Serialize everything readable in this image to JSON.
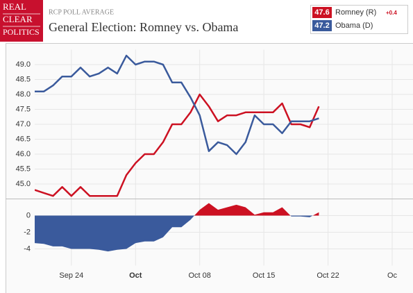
{
  "header": {
    "logo": [
      "REAL",
      "CLEAR",
      "POLITICS"
    ],
    "kicker": "RCP POLL AVERAGE",
    "title": "General Election: Romney vs. Obama"
  },
  "chart_data": [
    {
      "type": "line",
      "x": [
        "Sep 20",
        "Sep 21",
        "Sep 22",
        "Sep 23",
        "Sep 24",
        "Sep 25",
        "Sep 26",
        "Sep 27",
        "Sep 28",
        "Sep 29",
        "Sep 30",
        "Oct 01",
        "Oct 02",
        "Oct 03",
        "Oct 04",
        "Oct 05",
        "Oct 06",
        "Oct 07",
        "Oct 08",
        "Oct 09",
        "Oct 10",
        "Oct 11",
        "Oct 12",
        "Oct 13",
        "Oct 14",
        "Oct 15",
        "Oct 16",
        "Oct 17",
        "Oct 18",
        "Oct 19",
        "Oct 20",
        "Oct 21"
      ],
      "series": [
        {
          "name": "Romney (R)",
          "color": "#cc1122",
          "latest": 47.6,
          "change": "+0.4",
          "values": [
            44.8,
            44.7,
            44.6,
            44.9,
            44.6,
            44.9,
            44.6,
            44.6,
            44.6,
            44.6,
            45.3,
            45.7,
            46.0,
            46.0,
            46.4,
            47.0,
            47.0,
            47.4,
            48.0,
            47.6,
            47.1,
            47.3,
            47.3,
            47.4,
            47.4,
            47.4,
            47.4,
            47.7,
            47.0,
            47.0,
            46.9,
            47.6
          ]
        },
        {
          "name": "Obama (D)",
          "color": "#3a5a9c",
          "latest": 47.2,
          "values": [
            48.1,
            48.1,
            48.3,
            48.6,
            48.6,
            48.9,
            48.6,
            48.7,
            48.9,
            48.7,
            49.3,
            49.0,
            49.1,
            49.1,
            49.0,
            48.4,
            48.4,
            47.9,
            47.3,
            46.1,
            46.4,
            46.3,
            46.0,
            46.4,
            47.3,
            47.0,
            47.0,
            46.7,
            47.1,
            47.1,
            47.1,
            47.2
          ]
        }
      ],
      "xlim": [
        "Sep 20",
        "Oct 29"
      ],
      "ylim": [
        44.5,
        49.5
      ],
      "yticks": [
        {
          "value": 45,
          "label": "45.0"
        },
        45.5,
        {
          "value": 46,
          "label": "46.0"
        },
        46.5,
        {
          "value": 47,
          "label": "47.0"
        },
        47.5,
        {
          "value": 48,
          "label": "48.0"
        },
        48.5,
        {
          "value": 49,
          "label": "49.0"
        }
      ],
      "grid": true
    },
    {
      "type": "area",
      "x": [
        "Sep 20",
        "Sep 21",
        "Sep 22",
        "Sep 23",
        "Sep 24",
        "Sep 25",
        "Sep 26",
        "Sep 27",
        "Sep 28",
        "Sep 29",
        "Sep 30",
        "Oct 01",
        "Oct 02",
        "Oct 03",
        "Oct 04",
        "Oct 05",
        "Oct 06",
        "Oct 07",
        "Oct 08",
        "Oct 09",
        "Oct 10",
        "Oct 11",
        "Oct 12",
        "Oct 13",
        "Oct 14",
        "Oct 15",
        "Oct 16",
        "Oct 17",
        "Oct 18",
        "Oct 19",
        "Oct 20",
        "Oct 21"
      ],
      "values": [
        -3.3,
        -3.4,
        -3.7,
        -3.7,
        -4.0,
        -4.0,
        -4.0,
        -4.1,
        -4.3,
        -4.1,
        -4.0,
        -3.3,
        -3.1,
        -3.1,
        -2.6,
        -1.4,
        -1.4,
        -0.5,
        0.7,
        1.5,
        0.7,
        1.0,
        1.3,
        1.0,
        0.1,
        0.4,
        0.4,
        1.0,
        -0.1,
        -0.1,
        -0.2,
        0.4
      ],
      "positive_color": "#cc1122",
      "negative_color": "#3a5a9c",
      "xlim": [
        "Sep 20",
        "Oct 29"
      ],
      "xticks": [
        {
          "value": "Sep 24",
          "label": "Sep 24"
        },
        {
          "value": "Oct 01",
          "label": "Oct"
        },
        {
          "value": "Oct 08",
          "label": "Oct 08"
        },
        {
          "value": "Oct 15",
          "label": "Oct 15"
        },
        {
          "value": "Oct 22",
          "label": "Oct 22"
        },
        {
          "value": "Oct 29",
          "label": "Oc"
        }
      ],
      "ylim": [
        -6,
        2
      ],
      "yticks": [
        0,
        -2,
        -4
      ],
      "grid": true
    }
  ]
}
